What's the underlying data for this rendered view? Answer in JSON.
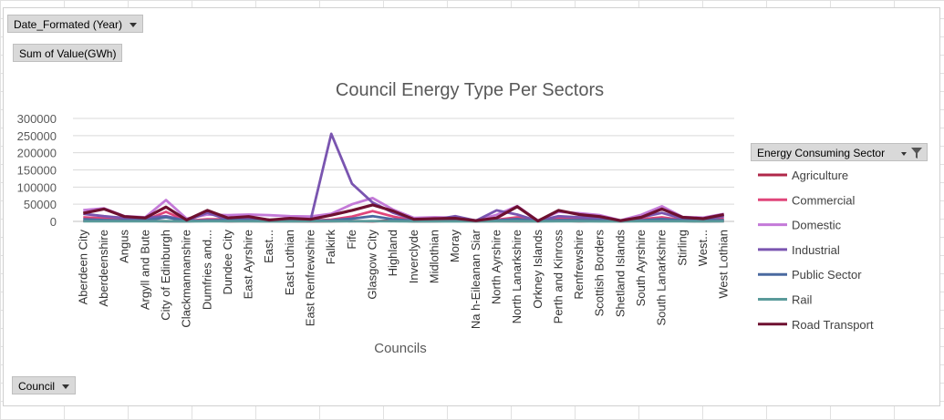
{
  "filters": {
    "year_button": "Date_Formated  (Year)",
    "value_button": "Sum of Value(GWh)",
    "council_button": "Council",
    "legend_button": "Energy  Consuming  Sector"
  },
  "chart_data": {
    "type": "line",
    "title": "Council Energy Type Per Sectors",
    "xlabel": "Councils",
    "ylabel": "",
    "ylim": [
      0,
      300000
    ],
    "yticks": [
      0,
      50000,
      100000,
      150000,
      200000,
      250000,
      300000
    ],
    "ytick_labels": [
      "0",
      "50000",
      "100000",
      "150000",
      "200000",
      "250000",
      "300000"
    ],
    "legend_position": "right",
    "categories": [
      "Aberdeen City",
      "Aberdeenshire",
      "Angus",
      "Argyll and Bute",
      "City of Edinburgh",
      "Clackmannanshire",
      "Dumfries and...",
      "Dundee City",
      "East Ayrshire",
      "East...",
      "East Lothian",
      "East Renfrewshire",
      "Falkirk",
      "Fife",
      "Glasgow City",
      "Highland",
      "Inverclyde",
      "Midlothian",
      "Moray",
      "Na h-Eileanan Siar",
      "North Ayrshire",
      "North Lanarkshire",
      "Orkney Islands",
      "Perth and Kinross",
      "Renfrewshire",
      "Scottish Borders",
      "Shetland Islands",
      "South Ayrshire",
      "South Lanarkshire",
      "Stirling",
      "West...",
      "West Lothian"
    ],
    "series": [
      {
        "name": "Agriculture",
        "color": "#b0284a",
        "values": [
          1000,
          2000,
          1500,
          1500,
          300,
          300,
          2000,
          200,
          1000,
          300,
          500,
          100,
          300,
          1000,
          100,
          3000,
          100,
          300,
          1500,
          500,
          800,
          500,
          800,
          2000,
          300,
          1500,
          200,
          1500,
          1200,
          1000,
          200,
          800
        ]
      },
      {
        "name": "Commercial",
        "color": "#e0457a",
        "values": [
          12000,
          9000,
          4000,
          4000,
          28000,
          1500,
          6000,
          6000,
          5000,
          3000,
          3500,
          2500,
          5000,
          14000,
          30000,
          14000,
          2500,
          3500,
          3500,
          1000,
          5000,
          12000,
          500,
          9000,
          7000,
          5000,
          600,
          6000,
          12000,
          4000,
          3000,
          8000
        ]
      },
      {
        "name": "Domestic",
        "color": "#c47ad8",
        "values": [
          33000,
          38000,
          15000,
          12000,
          62000,
          8000,
          20000,
          18000,
          20000,
          18000,
          15000,
          14000,
          22000,
          50000,
          68000,
          34000,
          10000,
          12000,
          11000,
          3000,
          19000,
          45000,
          2000,
          28000,
          24000,
          18000,
          3000,
          19000,
          44000,
          13000,
          11000,
          22000
        ]
      },
      {
        "name": "Industrial",
        "color": "#7a55b0",
        "values": [
          22000,
          15000,
          10000,
          10000,
          15000,
          2000,
          25000,
          5000,
          10000,
          5000,
          4000,
          3000,
          255000,
          110000,
          55000,
          25000,
          5000,
          5000,
          15000,
          2000,
          32000,
          20000,
          1000,
          15000,
          12000,
          10000,
          1000,
          12000,
          25000,
          8000,
          5000,
          15000
        ]
      },
      {
        "name": "Public Sector",
        "color": "#4a6aa0",
        "values": [
          6000,
          4000,
          3000,
          3000,
          12000,
          1000,
          3000,
          4000,
          3000,
          2000,
          1500,
          1500,
          3000,
          8000,
          15000,
          6000,
          1500,
          2000,
          2000,
          800,
          3000,
          7000,
          300,
          4000,
          4000,
          3000,
          500,
          3000,
          7000,
          3000,
          2000,
          4000
        ]
      },
      {
        "name": "Rail",
        "color": "#5a9a9a",
        "values": [
          300,
          300,
          200,
          200,
          500,
          100,
          200,
          200,
          200,
          100,
          100,
          200,
          300,
          300,
          800,
          300,
          100,
          100,
          100,
          0,
          200,
          400,
          0,
          300,
          300,
          100,
          0,
          200,
          300,
          200,
          100,
          200
        ]
      },
      {
        "name": "Road Transport",
        "color": "#6e1030",
        "values": [
          24000,
          36000,
          14000,
          10000,
          42000,
          4000,
          32000,
          10000,
          14000,
          4000,
          9000,
          6000,
          18000,
          32000,
          48000,
          30000,
          6000,
          8000,
          9000,
          2000,
          10000,
          43000,
          1000,
          32000,
          20000,
          14000,
          2000,
          12000,
          36000,
          12000,
          8000,
          20000
        ]
      }
    ]
  }
}
